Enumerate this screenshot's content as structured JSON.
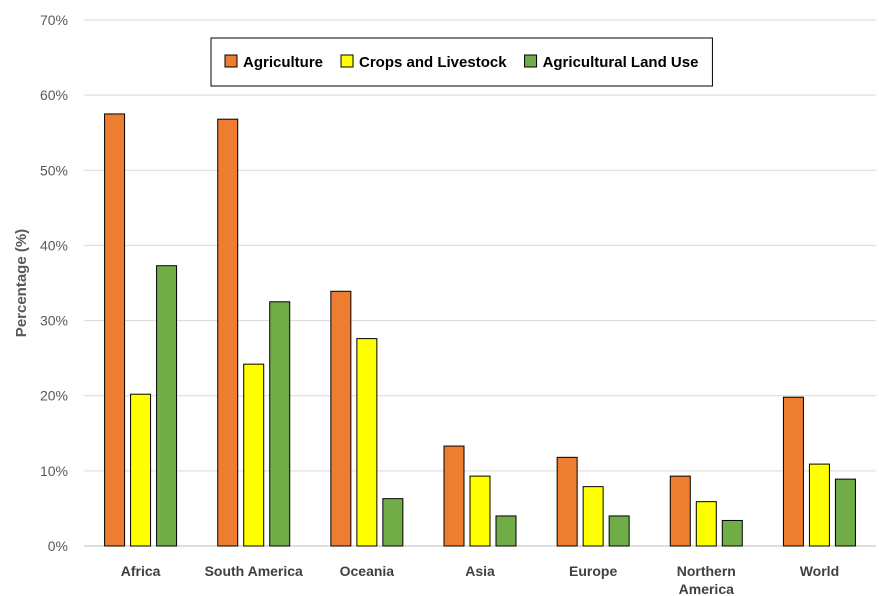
{
  "chart_data": {
    "type": "bar",
    "title": "",
    "xlabel": "",
    "ylabel": "Percentage (%)",
    "ylim": [
      0,
      70
    ],
    "yticks": [
      "0%",
      "10%",
      "20%",
      "30%",
      "40%",
      "50%",
      "60%",
      "70%"
    ],
    "grid": "horizontal",
    "legend_position": "top-right",
    "categories": [
      "Africa",
      "South America",
      "Oceania",
      "Asia",
      "Europe",
      "Northern America",
      "World"
    ],
    "series": [
      {
        "name": "Agriculture",
        "color": "#ED7D31",
        "values": [
          57.5,
          56.8,
          33.9,
          13.3,
          11.8,
          9.3,
          19.8
        ]
      },
      {
        "name": "Crops and Livestock",
        "color": "#FFFF00",
        "values": [
          20.2,
          24.2,
          27.6,
          9.3,
          7.9,
          5.9,
          10.9
        ]
      },
      {
        "name": "Agricultural Land Use",
        "color": "#70AD47",
        "values": [
          37.3,
          32.5,
          6.3,
          4.0,
          4.0,
          3.4,
          8.9
        ]
      }
    ]
  }
}
